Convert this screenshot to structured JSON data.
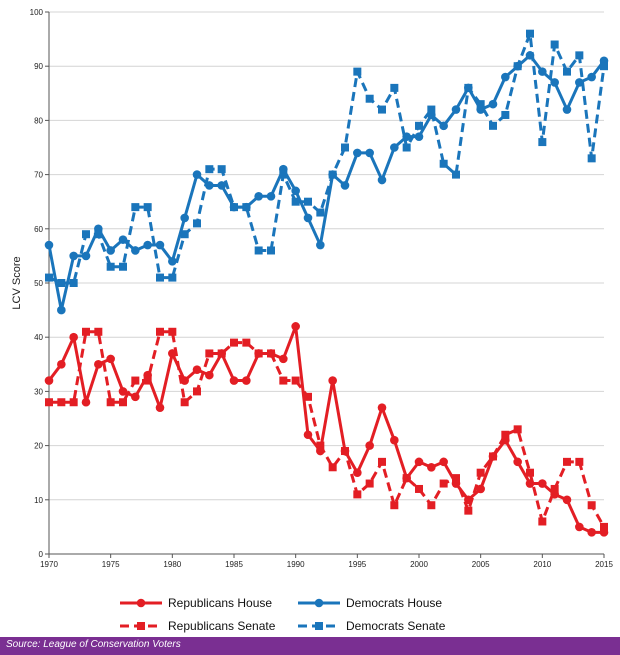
{
  "chart_data": {
    "type": "line",
    "title": "",
    "xlabel": "",
    "ylabel": "LCV Score",
    "xlim": [
      1970,
      2015
    ],
    "ylim": [
      0,
      100
    ],
    "x_ticks": [
      1970,
      1975,
      1980,
      1985,
      1990,
      1995,
      2000,
      2005,
      2010,
      2015
    ],
    "y_ticks": [
      0,
      10,
      20,
      30,
      40,
      50,
      60,
      70,
      80,
      90,
      100
    ],
    "x": [
      1970,
      1971,
      1972,
      1973,
      1974,
      1975,
      1976,
      1977,
      1978,
      1979,
      1980,
      1981,
      1982,
      1983,
      1984,
      1985,
      1986,
      1987,
      1988,
      1989,
      1990,
      1991,
      1992,
      1993,
      1994,
      1995,
      1996,
      1997,
      1998,
      1999,
      2000,
      2001,
      2002,
      2003,
      2004,
      2005,
      2006,
      2007,
      2008,
      2009,
      2010,
      2011,
      2012,
      2013,
      2014,
      2015
    ],
    "series": [
      {
        "name": "Republicans House",
        "color": "#e31e24",
        "dash": false,
        "marker": "circle",
        "values": [
          32,
          35,
          40,
          28,
          35,
          36,
          30,
          29,
          33,
          27,
          37,
          32,
          34,
          33,
          37,
          32,
          32,
          37,
          37,
          36,
          42,
          22,
          19,
          32,
          19,
          15,
          20,
          27,
          21,
          14,
          17,
          16,
          17,
          13,
          10,
          12,
          18,
          21,
          17,
          13,
          13,
          11,
          10,
          5,
          4,
          4
        ]
      },
      {
        "name": "Republicans Senate",
        "color": "#e31e24",
        "dash": true,
        "marker": "square",
        "values": [
          28,
          28,
          28,
          41,
          41,
          28,
          28,
          32,
          32,
          41,
          41,
          28,
          30,
          37,
          37,
          39,
          39,
          37,
          37,
          32,
          32,
          29,
          20,
          16,
          19,
          11,
          13,
          17,
          9,
          14,
          12,
          9,
          13,
          14,
          8,
          15,
          18,
          22,
          23,
          15,
          6,
          12,
          17,
          17,
          9,
          5
        ]
      },
      {
        "name": "Democrats House",
        "color": "#1a75bb",
        "dash": false,
        "marker": "circle",
        "values": [
          57,
          45,
          55,
          55,
          60,
          56,
          58,
          56,
          57,
          57,
          54,
          62,
          70,
          68,
          68,
          64,
          64,
          66,
          66,
          71,
          67,
          62,
          57,
          70,
          68,
          74,
          74,
          69,
          75,
          77,
          77,
          81,
          79,
          82,
          86,
          82,
          83,
          88,
          90,
          92,
          89,
          87,
          82,
          87,
          88,
          91
        ]
      },
      {
        "name": "Democrats Senate",
        "color": "#1a75bb",
        "dash": true,
        "marker": "square",
        "values": [
          51,
          50,
          50,
          59,
          59,
          53,
          53,
          64,
          64,
          51,
          51,
          59,
          61,
          71,
          71,
          64,
          64,
          56,
          56,
          70,
          65,
          65,
          63,
          70,
          75,
          89,
          84,
          82,
          86,
          75,
          79,
          82,
          72,
          70,
          86,
          83,
          79,
          81,
          90,
          96,
          76,
          94,
          89,
          92,
          73,
          90
        ]
      }
    ],
    "legend": [
      {
        "label": "Republicans House",
        "series": 0
      },
      {
        "label": "Democrats House",
        "series": 2
      },
      {
        "label": "Republicans Senate",
        "series": 1
      },
      {
        "label": "Democrats Senate",
        "series": 3
      }
    ],
    "legend_position": "bottom"
  },
  "source": "Source:  League of Conservation Voters"
}
